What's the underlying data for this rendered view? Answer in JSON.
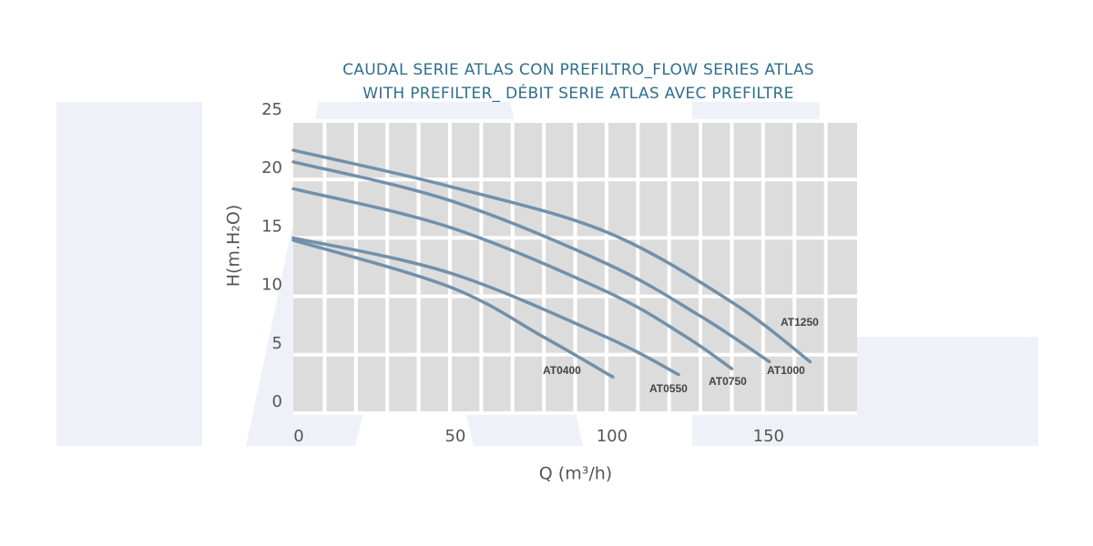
{
  "chart_data": {
    "type": "line",
    "title": [
      "CAUDAL SERIE ATLAS CON PREFILTRO_FLOW SERIES ATLAS",
      "WITH PREFILTER_ DÉBIT SERIE ATLAS AVEC PREFILTRE"
    ],
    "x_label": "Q (m³/h)",
    "y_label": "H(m.H₂O)",
    "xlim": [
      0,
      180
    ],
    "ylim": [
      0,
      25
    ],
    "xticks": [
      0,
      50,
      100,
      150
    ],
    "yticks": [
      0,
      5,
      10,
      15,
      20,
      25
    ],
    "xgrid": [
      10,
      20,
      30,
      40,
      50,
      60,
      70,
      80,
      90,
      100,
      110,
      120,
      130,
      140,
      150,
      160,
      170
    ],
    "grid": true,
    "series": [
      {
        "name": "AT1250",
        "color": "#7290aa",
        "x": [
          0,
          50,
          100,
          140,
          165
        ],
        "values": [
          22.5,
          19.4,
          15.5,
          9.5,
          4.4
        ]
      },
      {
        "name": "AT1000",
        "color": "#7290aa",
        "x": [
          0,
          50,
          100,
          130,
          152
        ],
        "values": [
          21.5,
          18.2,
          12.8,
          8.3,
          4.4
        ]
      },
      {
        "name": "AT0750",
        "color": "#7290aa",
        "x": [
          0,
          50,
          100,
          125,
          140
        ],
        "values": [
          19.2,
          15.9,
          10.4,
          6.6,
          3.8
        ]
      },
      {
        "name": "AT0550",
        "color": "#7290aa",
        "x": [
          0,
          50,
          100,
          123
        ],
        "values": [
          15.0,
          12.0,
          6.5,
          3.3
        ]
      },
      {
        "name": "AT0400",
        "color": "#7290aa",
        "x": [
          0,
          50,
          80,
          102
        ],
        "values": [
          14.8,
          10.8,
          6.5,
          3.1
        ]
      }
    ]
  }
}
